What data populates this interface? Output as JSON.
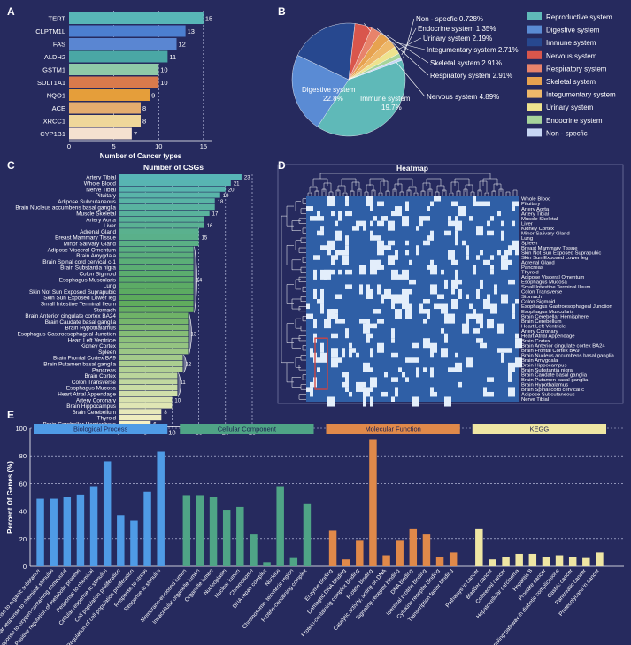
{
  "panels": {
    "a": "A",
    "b": "B",
    "c": "C",
    "d": "D",
    "e": "E"
  },
  "colors": {
    "bg": "#262a5e",
    "heat_bg": "#2f5fa6",
    "heat_cell": "#e3eefb",
    "highlight": "#d8413b"
  },
  "chart_data": [
    {
      "id": "A",
      "type": "bar",
      "orientation": "horizontal",
      "categories": [
        "TERT",
        "CLPTM1L",
        "FAS",
        "ALDH2",
        "GSTM1",
        "SULT1A1",
        "NQO1",
        "ACE",
        "XRCC1",
        "CYP1B1"
      ],
      "values": [
        15,
        13,
        12,
        11,
        10,
        10,
        9,
        8,
        8,
        7
      ],
      "colors": [
        "#58b6b7",
        "#4c7fd0",
        "#5a86d2",
        "#4aa7a5",
        "#8fc9a8",
        "#d97a4c",
        "#e59e3a",
        "#e4ad6e",
        "#efd79a",
        "#f5e1d0"
      ],
      "xlabel": "Number of Cancer types",
      "xticks": [
        0,
        5,
        10,
        15
      ],
      "xlim": [
        0,
        16
      ]
    },
    {
      "id": "B",
      "type": "pie",
      "slices": [
        {
          "name": "Reproductive system",
          "value": 39.9,
          "color": "#5fb9b8",
          "label": "Reproductive system",
          "pct": "39.9%"
        },
        {
          "name": "Digestive system",
          "value": 22.8,
          "color": "#5a8bd4",
          "label": "Digestive system",
          "pct": "22.8%"
        },
        {
          "name": "Immune system",
          "value": 19.7,
          "color": "#27488f",
          "label": "Immune system",
          "pct": "19.7%"
        },
        {
          "name": "Nervous system",
          "value": 4.89,
          "color": "#d9564c",
          "label": "Nervous system 4.89%",
          "pct": ""
        },
        {
          "name": "Respiratory system",
          "value": 2.91,
          "color": "#e8836b",
          "label": "Respiratory system 2.91%",
          "pct": ""
        },
        {
          "name": "Skeletal system",
          "value": 2.91,
          "color": "#e7a24f",
          "label": "Skeletal system 2.91%",
          "pct": ""
        },
        {
          "name": "Integumentary system",
          "value": 2.71,
          "color": "#eeb86a",
          "label": "Integumentary system 2.71%",
          "pct": ""
        },
        {
          "name": "Urinary system",
          "value": 2.19,
          "color": "#eee38e",
          "label": "Urinary system 2.19%",
          "pct": ""
        },
        {
          "name": "Endocrine system",
          "value": 1.35,
          "color": "#a6d49b",
          "label": "Endocrine system 1.35%",
          "pct": ""
        },
        {
          "name": "Non - specfic",
          "value": 0.728,
          "color": "#c7d6f4",
          "label": "Non - specfic 0.728%",
          "pct": ""
        }
      ],
      "legend": [
        "Reproductive system",
        "Digestive system",
        "Immune system",
        "Nervous system",
        "Respiratory system",
        "Skeletal system",
        "Integumentary system",
        "Urinary system",
        "Endocrine system",
        "Non - specfic"
      ],
      "legend_position": "right"
    },
    {
      "id": "C",
      "type": "bar",
      "orientation": "horizontal",
      "title": "Number of CSGs",
      "categories": [
        "Artery Tibial",
        "Whole Blood",
        "Nerve Tibial",
        "Pituitary",
        "Adipose Subcutaneous",
        "Brain Nucleus accumbens basal ganglia",
        "Muscle Skeletal",
        "Artery Aorta",
        "Liver",
        "Adrenal Gland",
        "Breast Mammary Tissue",
        "Minor Salivary Gland",
        "Adipose Visceral Omentum",
        "Brain Amygdala",
        "Brain Spinal cord cervical c-1",
        "Brain Substantia nigra",
        "Colon Sigmoid",
        "Esophagus Muscularis",
        "Lung",
        "Skin Not Sun Exposed Suprapubic",
        "Skin Sun Exposed Lower leg",
        "Small Intestine Terminal Ileum",
        "Stomach",
        "Brain Anterior cingulate cortex BA24",
        "Brain Caudate basal ganglia",
        "Brain Hypothalamus",
        "Esophagus Gastroesophageal Junction",
        "Heart Left Ventricle",
        "Kidney Cortex",
        "Spleen",
        "Brain Frontal Cortex BA9",
        "Brain Putamen basal ganglia",
        "Pancreas",
        "Brain Cortex",
        "Colon Transverse",
        "Esophagus Mucosa",
        "Heart Atrial Appendage",
        "Artery Coronary",
        "Brain Hippocampus",
        "Brain Cerebellum",
        "Thyroid",
        "Brain Cerebellar Hemisphere"
      ],
      "values": [
        23,
        21,
        20,
        19,
        18,
        18,
        17,
        16,
        16,
        15,
        15,
        15,
        14,
        14,
        14,
        14,
        14,
        14,
        14,
        14,
        14,
        14,
        14,
        13,
        13,
        13,
        13,
        13,
        13,
        13,
        12,
        12,
        12,
        11,
        11,
        11,
        11,
        10,
        10,
        8,
        8,
        6
      ],
      "value_labels": [
        "23",
        "21",
        "20",
        "19",
        "18",
        "",
        "17",
        "",
        "16",
        "",
        "15",
        "",
        "",
        "",
        "",
        "",
        "",
        "14",
        "",
        "",
        "",
        "",
        "",
        "",
        "",
        "",
        "13",
        "",
        "",
        "",
        "",
        "12",
        "",
        "",
        "11",
        "",
        "",
        "10",
        "",
        "8",
        "",
        "6"
      ],
      "xticks": [
        0,
        5,
        10,
        15,
        20,
        25
      ],
      "xlim": [
        0,
        25
      ]
    },
    {
      "id": "D",
      "type": "heatmap",
      "title": "Heatmap",
      "rows": [
        "Whole Blood",
        "Pituitary",
        "Artery Aorta",
        "Artery Tibial",
        "Muscle Skeletal",
        "Liver",
        "Kidney Cortex",
        "Minor Salivary Gland",
        "Lung",
        "Spleen",
        "Breast Mammary Tissue",
        "Skin Not Sun Exposed Suprapubic",
        "Skin Sun Exposed Lower leg",
        "Adrenal Gland",
        "Pancreas",
        "Thyroid",
        "Adipose Visceral Omentum",
        "Esophagus Mucosa",
        "Small Intestine Terminal Ileum",
        "Colon Transverse",
        "Stomach",
        "Colon Sigmoid",
        "Esophagus Gastroesophageal Junction",
        "Esophagus Muscularis",
        "Brain Cerebellar Hemisphere",
        "Brain Cerebellum",
        "Heart Left Ventricle",
        "Artery Coronary",
        "Heart Atrial Appendage",
        "Brain Cortex",
        "Brain Anterior cingulate cortex BA24",
        "Brain Frontal Cortex BA9",
        "Brain Nucleus accumbens basal ganglia",
        "Brain Amygdala",
        "Brain Hippocampus",
        "Brain Substantia nigra",
        "Brain Caudate basal ganglia",
        "Brain Putamen basal ganglia",
        "Brain Hypothalamus",
        "Brain Spinal cord cervical c",
        "Adipose Subcutaneous",
        "Nerve Tibial"
      ]
    },
    {
      "id": "E",
      "type": "bar",
      "ylabel": "Percent Of Genes (%)",
      "ylim": [
        0,
        100
      ],
      "yticks": [
        0,
        20,
        40,
        60,
        80,
        100
      ],
      "groups": [
        {
          "name": "Biological Process",
          "color": "#4f9be6",
          "categories": [
            "Response to organic substance",
            "Cellular response to chemical stimulus",
            "Response to oxygen-containing compound",
            "Positive regulation of metabolic process",
            "Response to chemical",
            "Cellular response to stimulus",
            "Cell population proliferation",
            "Regulation of cell population proliferation",
            "Response to stress",
            "Response to stimulus"
          ],
          "values": [
            49,
            49,
            50,
            52,
            58,
            76,
            37,
            33,
            54,
            83
          ]
        },
        {
          "name": "Cellular Component",
          "color": "#4fa486",
          "categories": [
            "Membrane-enclosed lumen",
            "Intracellular organelle lumen",
            "Organelle lumen",
            "Nucleoplasm",
            "Nuclear lumen",
            "Chromosome",
            "DNA repair complex",
            "Nucleus",
            "Chromosome, telomeric region",
            "Protein-containing complex"
          ],
          "values": [
            51,
            51,
            50,
            41,
            43,
            23,
            3,
            58,
            6,
            45
          ]
        },
        {
          "name": "Molecular Function",
          "color": "#e0894a",
          "categories": [
            "Enzyme binding",
            "Damaged DNA binding",
            "Protein-containing complex binding",
            "Protein binding",
            "Catalytic activity, acting on DNA",
            "Signaling receptor binding",
            "DNA binding",
            "Identical protein binding",
            "Cytokine receptor binding",
            "Transcription factor binding"
          ],
          "values": [
            26,
            5,
            19,
            92,
            8,
            19,
            27,
            23,
            7,
            10
          ]
        },
        {
          "name": "KEGG",
          "color": "#efe6a4",
          "categories": [
            "Pathways in cancer",
            "Bladder cancer",
            "Colorectal cancer",
            "Hepatocellular carcinoma",
            "Hepatitis B",
            "Prostate cancer",
            "AGE-RAGE signaling pathway in diabetic complications",
            "Gastric cancer",
            "Pancreatic cancer",
            "Proteoglycans in cancer"
          ],
          "values": [
            27,
            5,
            7,
            9,
            9,
            7,
            8,
            7,
            6,
            10
          ]
        }
      ]
    }
  ]
}
